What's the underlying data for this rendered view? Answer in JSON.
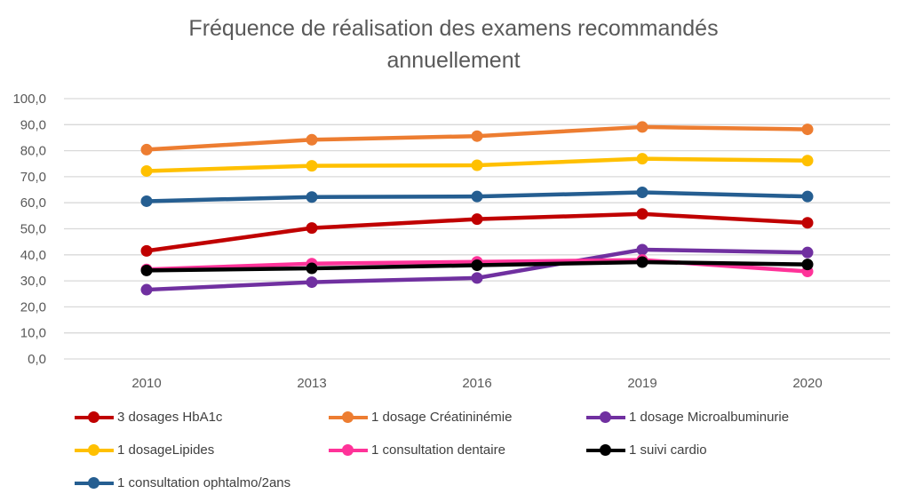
{
  "chart_data": {
    "type": "line",
    "title": "Fréquence de réalisation  des examens recommandés\nannuellement",
    "categories": [
      "2010",
      "2013",
      "2016",
      "2019",
      "2020"
    ],
    "ylim": [
      0,
      100
    ],
    "yticks": [
      "0,0",
      "10,0",
      "20,0",
      "30,0",
      "40,0",
      "50,0",
      "60,0",
      "70,0",
      "80,0",
      "90,0",
      "100,0"
    ],
    "grid": true,
    "legend_position": "bottom",
    "series": [
      {
        "name": "3 dosages HbA1c",
        "color": "#C00000",
        "values": [
          41.5,
          50.3,
          53.7,
          55.7,
          52.3
        ]
      },
      {
        "name": "1 dosage Créatininémie",
        "color": "#ED7D31",
        "values": [
          80.4,
          84.2,
          85.6,
          89.1,
          88.2
        ]
      },
      {
        "name": "1 dosage Microalbuminurie",
        "color": "#7030A0",
        "values": [
          26.6,
          29.5,
          31.1,
          42.0,
          40.9
        ]
      },
      {
        "name": "1 dosageLipides",
        "color": "#FFC000",
        "values": [
          72.2,
          74.2,
          74.4,
          76.9,
          76.2
        ]
      },
      {
        "name": "1 consultation dentaire",
        "color": "#FF3399",
        "values": [
          34.4,
          36.6,
          37.3,
          38.0,
          33.6
        ]
      },
      {
        "name": "1 suivi cardio",
        "color": "#000000",
        "values": [
          34.0,
          34.8,
          36.0,
          37.2,
          36.3
        ]
      },
      {
        "name": "1 consultation ophtalmo/2ans",
        "color": "#255E91",
        "values": [
          60.6,
          62.2,
          62.4,
          64.0,
          62.4
        ]
      }
    ]
  }
}
